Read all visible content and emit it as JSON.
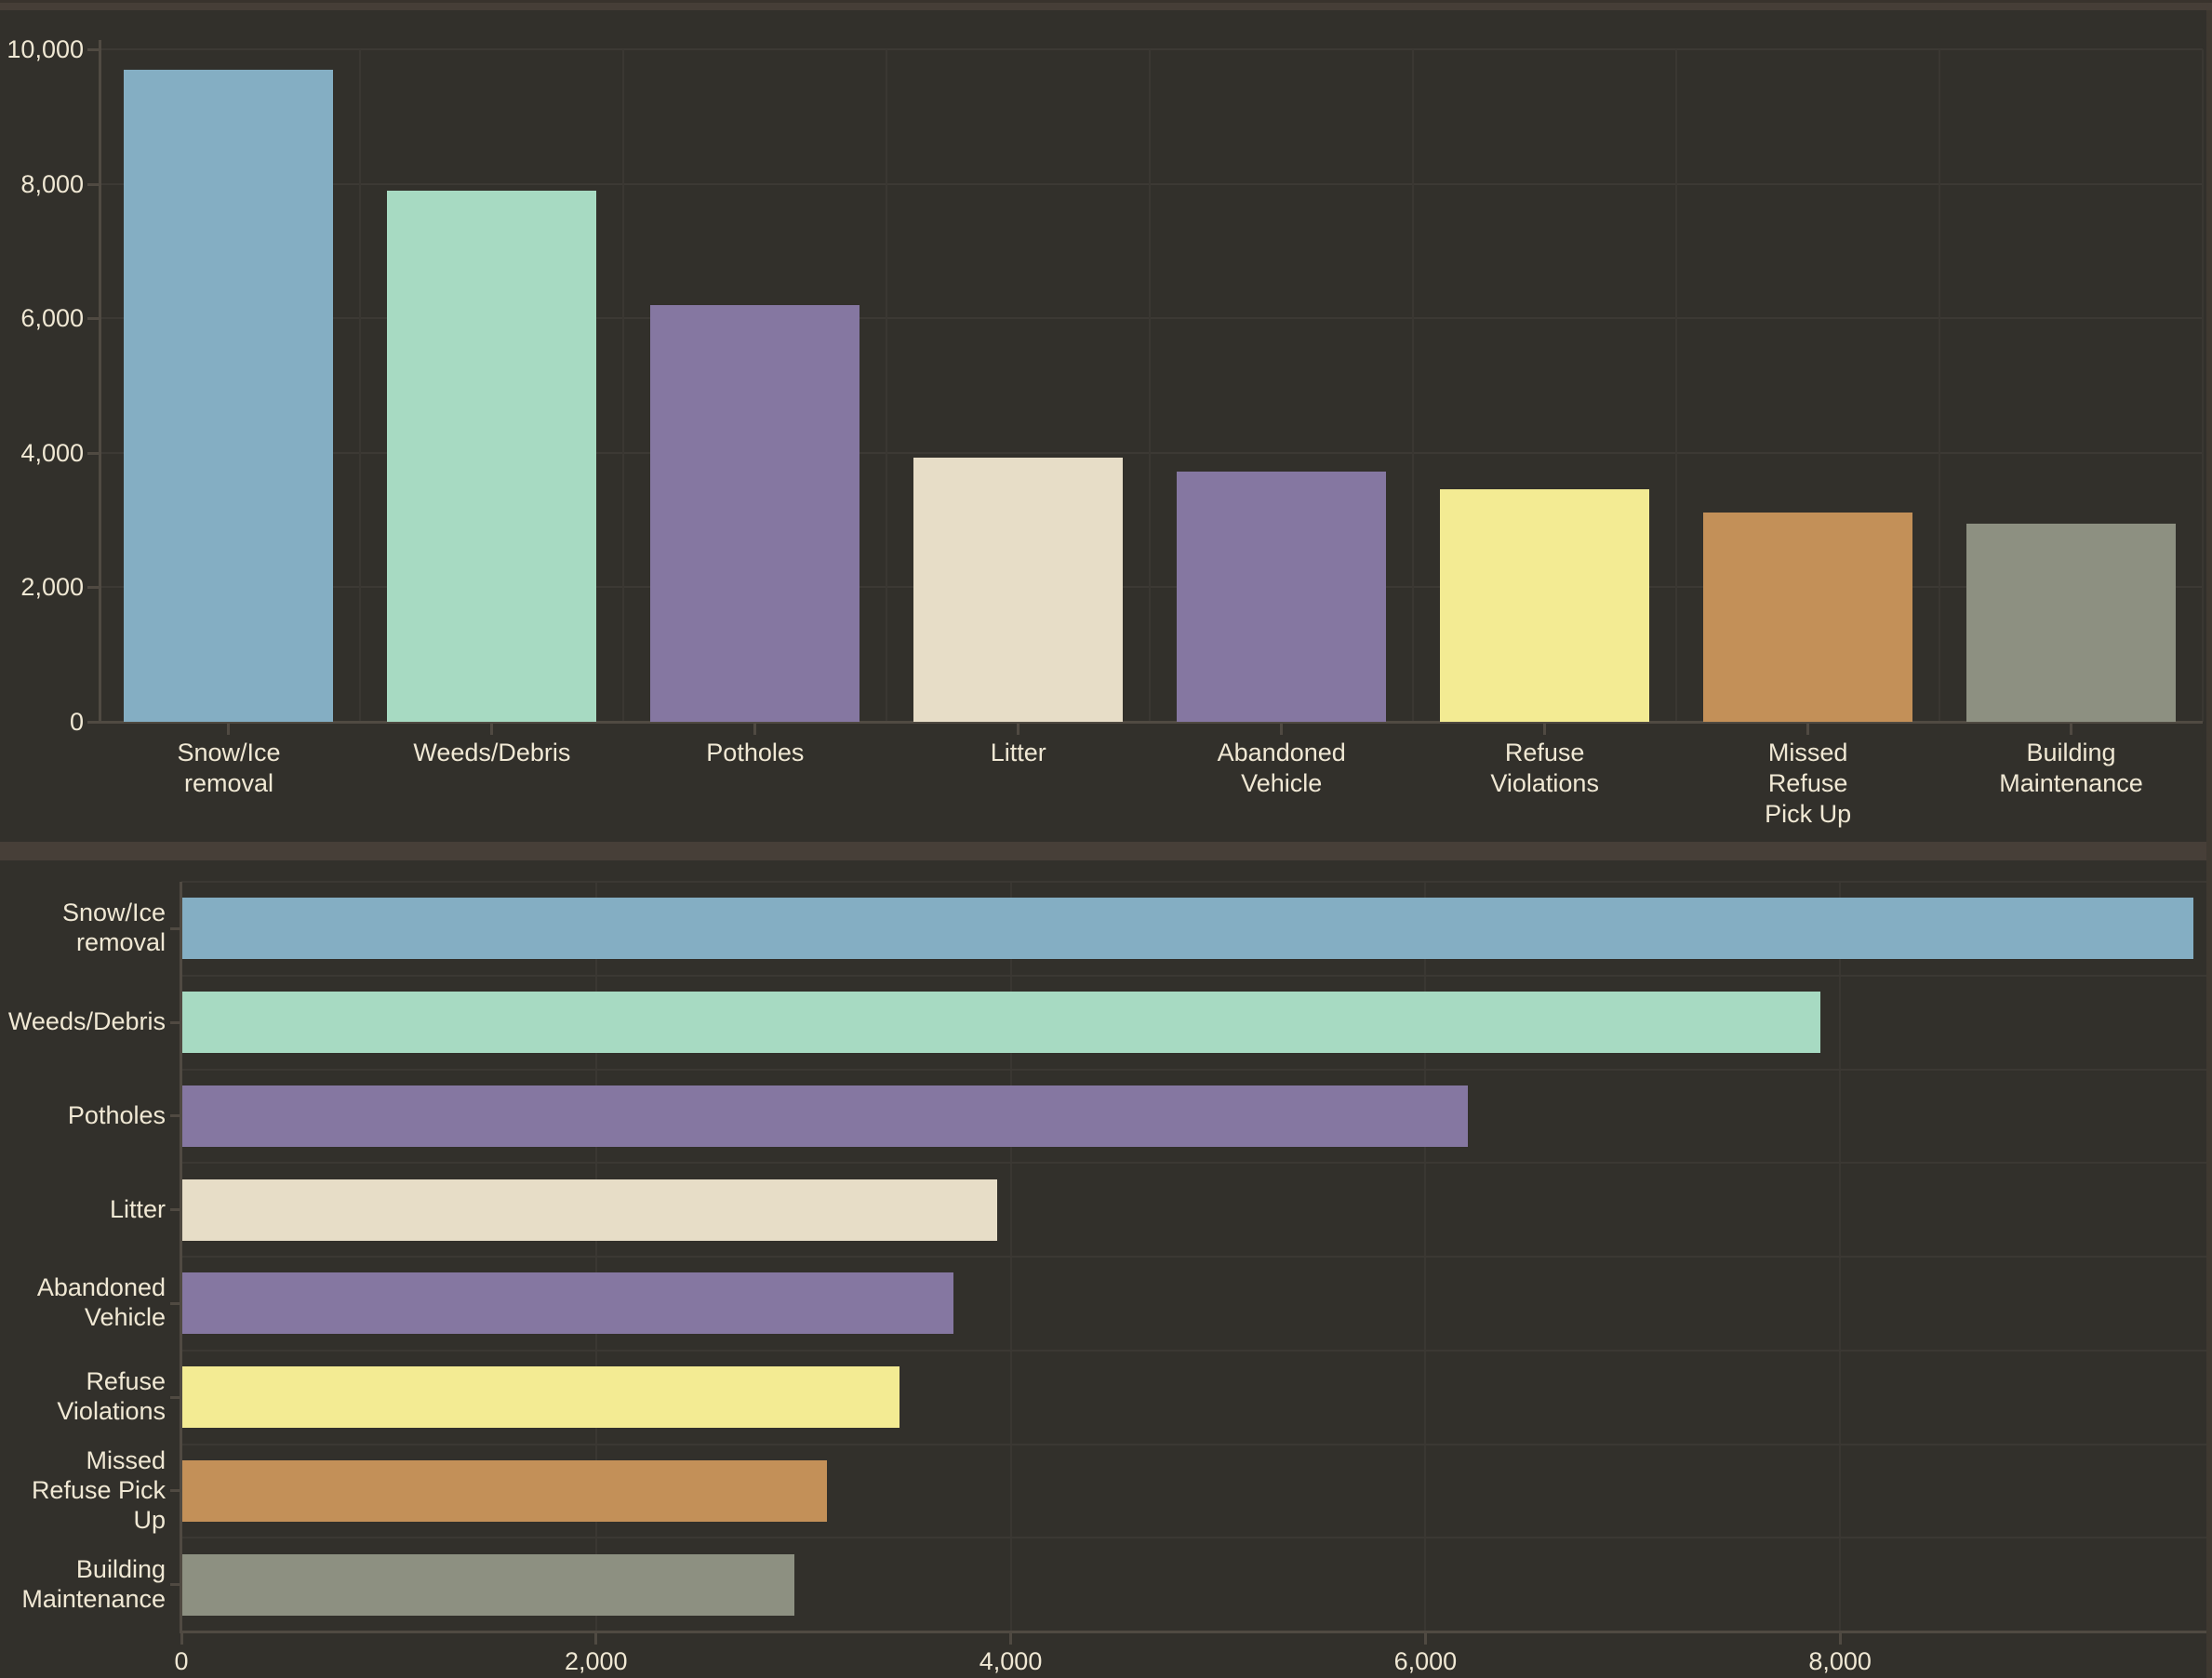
{
  "page": {
    "background": "#32302B",
    "top_strip_color": "#463E37",
    "divider_color": "#473F38",
    "edge_strip_color": "#3F3931",
    "text_color": "#F0E8D4",
    "grid_color": "#3C3934",
    "axis_color": "#504A42"
  },
  "chart_data": [
    {
      "type": "bar",
      "orientation": "vertical",
      "title": "",
      "legend": "none",
      "grid": true,
      "categories": [
        "Snow/Ice removal",
        "Weeds/Debris",
        "Potholes",
        "Litter",
        "Abandoned Vehicle",
        "Refuse Violations",
        "Missed Refuse Pick Up",
        "Building Maintenance"
      ],
      "category_lines": [
        [
          "Snow/Ice",
          "removal"
        ],
        [
          "Weeds/Debris"
        ],
        [
          "Potholes"
        ],
        [
          "Litter"
        ],
        [
          "Abandoned",
          "Vehicle"
        ],
        [
          "Refuse",
          "Violations"
        ],
        [
          "Missed",
          "Refuse",
          "Pick Up"
        ],
        [
          "Building",
          "Maintenance"
        ]
      ],
      "values": [
        9700,
        7900,
        6200,
        3930,
        3720,
        3460,
        3110,
        2950
      ],
      "colors": [
        "#84AEC3",
        "#A7DAC2",
        "#8577A1",
        "#E7DDC7",
        "#8577A1",
        "#F3EB93",
        "#C39058",
        "#8D9081"
      ],
      "ylim": [
        0,
        10000
      ],
      "yticks": [
        {
          "value": 0,
          "label": "0"
        },
        {
          "value": 2000,
          "label": "2,000"
        },
        {
          "value": 4000,
          "label": "4,000"
        },
        {
          "value": 6000,
          "label": "6,000"
        },
        {
          "value": 8000,
          "label": "8,000"
        },
        {
          "value": 10000,
          "label": "10,000"
        }
      ]
    },
    {
      "type": "bar",
      "orientation": "horizontal",
      "title": "",
      "legend": "none",
      "grid": true,
      "categories": [
        "Snow/Ice removal",
        "Weeds/Debris",
        "Potholes",
        "Litter",
        "Abandoned Vehicle",
        "Refuse Violations",
        "Missed Refuse Pick Up",
        "Building Maintenance"
      ],
      "category_lines": [
        [
          "Snow/Ice",
          "removal"
        ],
        [
          "Weeds/Debris"
        ],
        [
          "Potholes"
        ],
        [
          "Litter"
        ],
        [
          "Abandoned",
          "Vehicle"
        ],
        [
          "Refuse",
          "Violations"
        ],
        [
          "Missed",
          "Refuse Pick",
          "Up"
        ],
        [
          "Building",
          "Maintenance"
        ]
      ],
      "values": [
        9700,
        7900,
        6200,
        3930,
        3720,
        3460,
        3110,
        2950
      ],
      "colors": [
        "#84AEC3",
        "#A7DAC2",
        "#8577A1",
        "#E7DDC7",
        "#8577A1",
        "#F3EB93",
        "#C39058",
        "#8D9081"
      ],
      "xlim": [
        0,
        9767
      ],
      "xticks": [
        {
          "value": 0,
          "label": "0"
        },
        {
          "value": 2000,
          "label": "2,000"
        },
        {
          "value": 4000,
          "label": "4,000"
        },
        {
          "value": 6000,
          "label": "6,000"
        },
        {
          "value": 8000,
          "label": "8,000"
        }
      ]
    }
  ]
}
